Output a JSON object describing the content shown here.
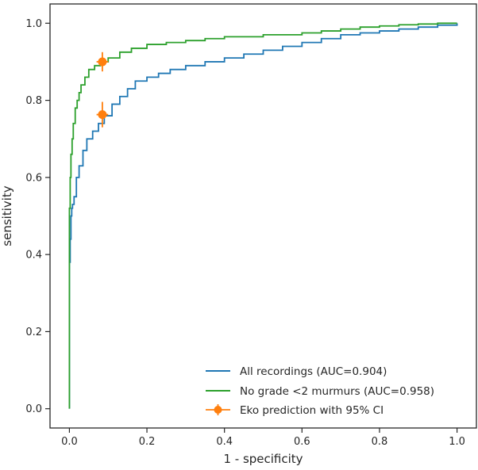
{
  "chart_data": {
    "type": "line",
    "title": "",
    "xlabel": "1 - specificity",
    "ylabel": "sensitivity",
    "xlim": [
      -0.05,
      1.05
    ],
    "ylim": [
      -0.05,
      1.05
    ],
    "x_ticks": [
      0.0,
      0.2,
      0.4,
      0.6,
      0.8,
      1.0
    ],
    "y_ticks": [
      0.0,
      0.2,
      0.4,
      0.6,
      0.8,
      1.0
    ],
    "x_tick_labels": [
      "0.0",
      "0.2",
      "0.4",
      "0.6",
      "0.8",
      "1.0"
    ],
    "y_tick_labels": [
      "0.0",
      "0.2",
      "0.4",
      "0.6",
      "0.8",
      "1.0"
    ],
    "grid": false,
    "legend_position": "bottom-right",
    "series": [
      {
        "name": "All recordings (AUC=0.904)",
        "color": "#1f77b4",
        "x": [
          0.0,
          0.0,
          0.002,
          0.004,
          0.006,
          0.008,
          0.012,
          0.018,
          0.025,
          0.035,
          0.045,
          0.06,
          0.075,
          0.09,
          0.11,
          0.13,
          0.15,
          0.17,
          0.2,
          0.23,
          0.26,
          0.3,
          0.35,
          0.4,
          0.45,
          0.5,
          0.55,
          0.6,
          0.65,
          0.7,
          0.75,
          0.8,
          0.85,
          0.9,
          0.95,
          1.0
        ],
        "y": [
          0.0,
          0.38,
          0.44,
          0.5,
          0.52,
          0.53,
          0.55,
          0.6,
          0.63,
          0.67,
          0.7,
          0.72,
          0.74,
          0.76,
          0.79,
          0.81,
          0.83,
          0.85,
          0.86,
          0.87,
          0.88,
          0.89,
          0.9,
          0.91,
          0.92,
          0.93,
          0.94,
          0.95,
          0.96,
          0.97,
          0.975,
          0.98,
          0.985,
          0.99,
          0.995,
          1.0
        ]
      },
      {
        "name": "No grade <2 murmurs (AUC=0.958)",
        "color": "#2ca02c",
        "x": [
          0.0,
          0.0,
          0.002,
          0.004,
          0.007,
          0.01,
          0.015,
          0.02,
          0.025,
          0.03,
          0.04,
          0.05,
          0.065,
          0.08,
          0.1,
          0.13,
          0.16,
          0.2,
          0.25,
          0.3,
          0.35,
          0.4,
          0.5,
          0.6,
          0.65,
          0.7,
          0.75,
          0.8,
          0.85,
          0.9,
          0.95,
          1.0
        ],
        "y": [
          0.0,
          0.52,
          0.6,
          0.66,
          0.7,
          0.74,
          0.78,
          0.8,
          0.82,
          0.84,
          0.86,
          0.88,
          0.89,
          0.9,
          0.91,
          0.925,
          0.935,
          0.945,
          0.95,
          0.955,
          0.96,
          0.965,
          0.97,
          0.975,
          0.98,
          0.985,
          0.99,
          0.993,
          0.996,
          0.998,
          1.0,
          1.0
        ]
      }
    ],
    "points": {
      "name": "Eko prediction with 95% CI",
      "color": "#ff7f0e",
      "items": [
        {
          "x": 0.085,
          "y": 0.9,
          "x_err": 0.015,
          "y_err": 0.025
        },
        {
          "x": 0.085,
          "y": 0.763,
          "x_err": 0.015,
          "y_err": 0.033
        }
      ]
    }
  }
}
